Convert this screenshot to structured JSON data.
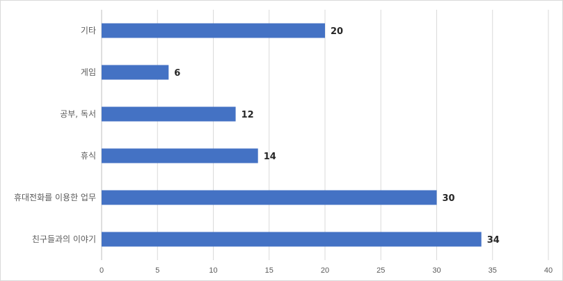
{
  "chart_data": {
    "type": "bar",
    "orientation": "horizontal",
    "title": "",
    "xlabel": "",
    "ylabel": "",
    "categories": [
      "기타",
      "게임",
      "공부, 독서",
      "휴식",
      "휴대전화를 이용한 업무",
      "친구들과의 이야기"
    ],
    "values": [
      20,
      6,
      12,
      14,
      30,
      34
    ],
    "xlim": [
      0,
      40
    ],
    "x_ticks": [
      "0",
      "5",
      "10",
      "15",
      "20",
      "25",
      "30",
      "35",
      "40"
    ],
    "grid": "vertical",
    "legend": "none",
    "bar_color": "#4472C4",
    "grid_color": "#d9d9d9"
  }
}
